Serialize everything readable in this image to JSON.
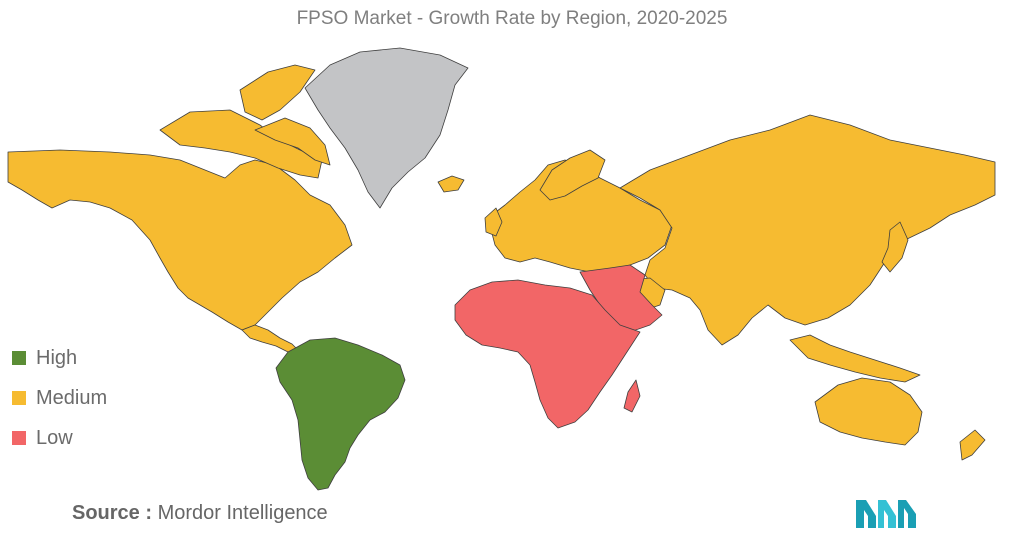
{
  "title": "FPSO Market - Growth Rate by Region, 2020-2025",
  "legend": [
    {
      "label": "High",
      "color": "#5b8d35"
    },
    {
      "label": "Medium",
      "color": "#f6bb31"
    },
    {
      "label": "Low",
      "color": "#f26667"
    }
  ],
  "colors": {
    "high": "#5b8d35",
    "medium": "#f6bb31",
    "low": "#f26667",
    "no_data": "#c3c4c6",
    "border": "#3f3f3f"
  },
  "regions": {
    "south_america": "High",
    "north_america": "Medium",
    "europe": "Medium",
    "asia_pacific": "Medium",
    "middle_east_africa": "Low",
    "greenland": "No data"
  },
  "source": {
    "label": "Source :",
    "value": "Mordor Intelligence"
  },
  "logo": {
    "icon": "mordor-intelligence-logo"
  }
}
